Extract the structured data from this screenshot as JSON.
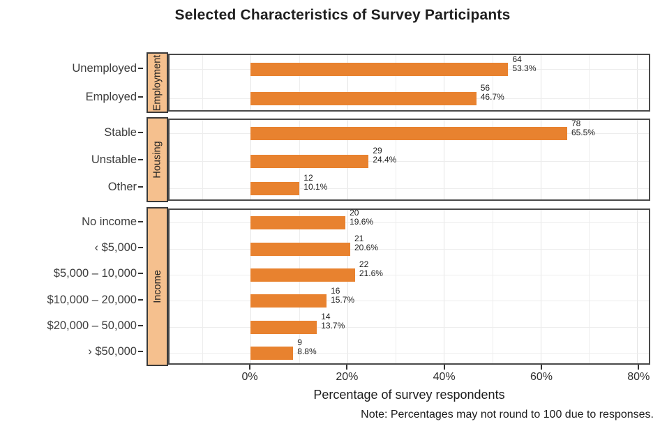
{
  "title": "Selected Characteristics of Survey Participants",
  "chart_data": {
    "type": "bar",
    "orientation": "horizontal",
    "title": "Selected Characteristics of Survey Participants",
    "xlabel": "Percentage of survey respondents",
    "note": "Note: Percentages may not round to 100 due to responses.",
    "x_unit": "percent",
    "xlim": [
      -16.8,
      82.4
    ],
    "grid": "on",
    "legend": "none",
    "x_ticks": [
      {
        "value": 0,
        "label": "0%"
      },
      {
        "value": 20,
        "label": "20%"
      },
      {
        "value": 40,
        "label": "40%"
      },
      {
        "value": 60,
        "label": "60%"
      },
      {
        "value": 80,
        "label": "80%"
      }
    ],
    "facets": [
      {
        "label": "Employment",
        "rows": [
          {
            "category": "Unemployed",
            "count": 64,
            "pct": 53.3,
            "count_label": "64",
            "pct_label": "53.3%"
          },
          {
            "category": "Employed",
            "count": 56,
            "pct": 46.7,
            "count_label": "56",
            "pct_label": "46.7%"
          }
        ]
      },
      {
        "label": "Housing",
        "rows": [
          {
            "category": "Stable",
            "count": 78,
            "pct": 65.5,
            "count_label": "78",
            "pct_label": "65.5%"
          },
          {
            "category": "Unstable",
            "count": 29,
            "pct": 24.4,
            "count_label": "29",
            "pct_label": "24.4%"
          },
          {
            "category": "Other",
            "count": 12,
            "pct": 10.1,
            "count_label": "12",
            "pct_label": "10.1%"
          }
        ]
      },
      {
        "label": "Income",
        "rows": [
          {
            "category": "No income",
            "count": 20,
            "pct": 19.6,
            "count_label": "20",
            "pct_label": "19.6%"
          },
          {
            "category": "‹ $5,000",
            "count": 21,
            "pct": 20.6,
            "count_label": "21",
            "pct_label": "20.6%"
          },
          {
            "category": "$5,000 – 10,000",
            "count": 22,
            "pct": 21.6,
            "count_label": "22",
            "pct_label": "21.6%"
          },
          {
            "category": "$10,000 – 20,000",
            "count": 16,
            "pct": 15.7,
            "count_label": "16",
            "pct_label": "15.7%"
          },
          {
            "category": "$20,000 – 50,000",
            "count": 14,
            "pct": 13.7,
            "count_label": "14",
            "pct_label": "13.7%"
          },
          {
            "category": "› $50,000",
            "count": 9,
            "pct": 8.8,
            "count_label": "9",
            "pct_label": "8.8%"
          }
        ]
      }
    ],
    "colors": {
      "bar": "#E8822F",
      "strip_fill": "#F5C08E",
      "strip_border": "#3A3A3A",
      "panel_border": "#4A4A4A",
      "grid": "#EDEDED",
      "text": "#1F1F1F"
    }
  }
}
